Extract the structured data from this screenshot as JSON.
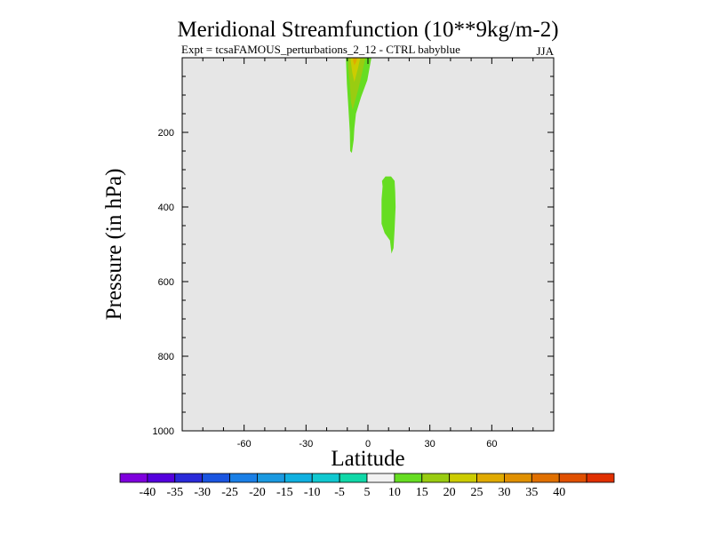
{
  "chart_data": {
    "type": "contour",
    "title": "Meridional Streamfunction (10**9kg/m-2)",
    "subtitle_left": "Expt = tcsaFAMOUS_perturbations_2_12 - CTRL babyblue",
    "subtitle_right": "JJA",
    "xlabel": "Latitude",
    "ylabel": "Pressure (in hPa)",
    "xlim": [
      -90,
      90
    ],
    "ylim": [
      1000,
      0
    ],
    "x_ticks": [
      -60,
      -30,
      0,
      30,
      60
    ],
    "y_ticks": [
      200,
      400,
      600,
      800,
      1000
    ],
    "background_color": "#e6e6e6",
    "contours": [
      {
        "name": "upper-plume-10",
        "level": "5 to 10",
        "color": "#66dd22",
        "points": [
          [
            -10.7,
            0
          ],
          [
            1.7,
            0
          ],
          [
            -0.3,
            60
          ],
          [
            -3.3,
            105
          ],
          [
            -5.8,
            150
          ],
          [
            -6.6,
            190
          ],
          [
            -6.9,
            220
          ],
          [
            -7.8,
            255
          ],
          [
            -8.6,
            250
          ],
          [
            -8.8,
            200
          ],
          [
            -9.5,
            130
          ],
          [
            -10.2,
            70
          ]
        ]
      },
      {
        "name": "upper-plume-15",
        "level": "10 to 15",
        "color": "#99cc11",
        "points": [
          [
            -9.5,
            0
          ],
          [
            -1.2,
            0
          ],
          [
            -2.8,
            40
          ],
          [
            -4.7,
            85
          ],
          [
            -7.4,
            140
          ],
          [
            -8.2,
            120
          ],
          [
            -8.8,
            70
          ],
          [
            -9.5,
            25
          ]
        ]
      },
      {
        "name": "upper-plume-20",
        "level": "15 to 20",
        "color": "#cccc00",
        "points": [
          [
            -8.5,
            0
          ],
          [
            -3.7,
            0
          ],
          [
            -4.9,
            30
          ],
          [
            -6.6,
            65
          ],
          [
            -7.6,
            40
          ],
          [
            -8.2,
            15
          ]
        ]
      },
      {
        "name": "upper-plume-25",
        "level": "20 to 25",
        "color": "#e0aa00",
        "points": [
          [
            -7.4,
            0
          ],
          [
            -5.1,
            0
          ],
          [
            -5.7,
            12
          ],
          [
            -6.6,
            20
          ],
          [
            -7.1,
            10
          ]
        ]
      },
      {
        "name": "lower-blob-10",
        "level": "5 to 10",
        "color": "#66dd22",
        "points": [
          [
            6.8,
            330
          ],
          [
            8.5,
            318
          ],
          [
            11.2,
            318
          ],
          [
            12.9,
            330
          ],
          [
            13.2,
            360
          ],
          [
            13.4,
            400
          ],
          [
            12.9,
            460
          ],
          [
            12.4,
            510
          ],
          [
            11.4,
            525
          ],
          [
            10.7,
            490
          ],
          [
            8.1,
            470
          ],
          [
            6.6,
            445
          ],
          [
            6.6,
            380
          ],
          [
            7.1,
            345
          ]
        ]
      }
    ],
    "colorbar": {
      "colors": [
        "#7f00dd",
        "#5500dd",
        "#2a2ad9",
        "#1a55e0",
        "#1a7fe6",
        "#1a99e0",
        "#10b0e0",
        "#10c8d0",
        "#10d8a8",
        "#f2f2f2",
        "#66dd22",
        "#99cc11",
        "#cccc00",
        "#e0aa00",
        "#e09000",
        "#e07000",
        "#e05000",
        "#e03000"
      ],
      "labels": [
        "-40",
        "-35",
        "-30",
        "-25",
        "-20",
        "-15",
        "-10",
        "-5",
        "5",
        "10",
        "15",
        "20",
        "25",
        "30",
        "35",
        "40"
      ]
    }
  }
}
